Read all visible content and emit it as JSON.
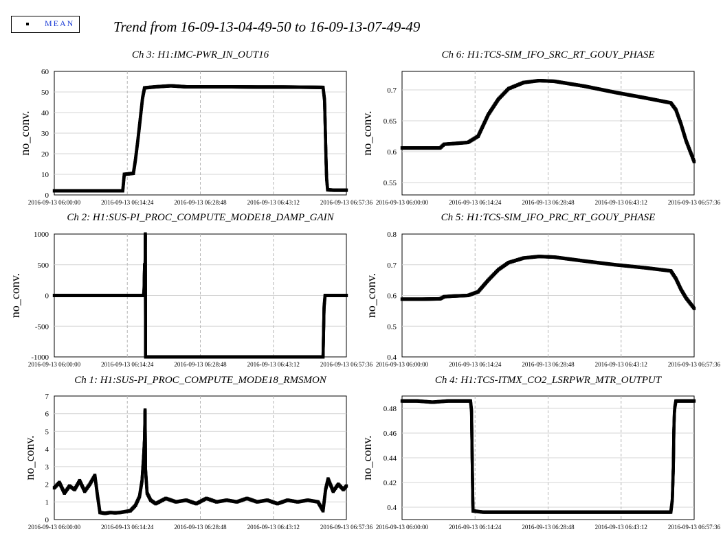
{
  "legend": {
    "label": "MEAN"
  },
  "page_title": "Trend from 16-09-13-04-49-50 to 16-09-13-07-49-49",
  "chart_data": [
    {
      "type": "scatter",
      "title": "Ch 3: H1:IMC-PWR_IN_OUT16",
      "ylabel": "no_conv.",
      "xlabel": "",
      "x_ticks": [
        "2016-09-13 06:00:00",
        "2016-09-13 06:14:24",
        "2016-09-13 06:28:48",
        "2016-09-13 06:43:12",
        "2016-09-13 06:57:36"
      ],
      "x_range_minutes": [
        0,
        57.6
      ],
      "y_ticks": [
        "0",
        "10",
        "20",
        "30",
        "40",
        "50",
        "60"
      ],
      "ylim": [
        0,
        60
      ],
      "grid": true,
      "series": [
        {
          "points": [
            [
              0,
              2
            ],
            [
              2,
              2
            ],
            [
              6,
              2
            ],
            [
              10,
              2
            ],
            [
              13.5,
              2
            ],
            [
              13.8,
              10
            ],
            [
              15.6,
              10.5
            ],
            [
              16,
              17
            ],
            [
              16.5,
              27
            ],
            [
              17,
              38
            ],
            [
              17.4,
              47
            ],
            [
              17.8,
              52
            ],
            [
              20,
              52.5
            ],
            [
              23,
              53
            ],
            [
              26,
              52.5
            ],
            [
              30,
              52.5
            ],
            [
              35,
              52.5
            ],
            [
              40,
              52.4
            ],
            [
              45,
              52.4
            ],
            [
              50,
              52.3
            ],
            [
              53,
              52.2
            ],
            [
              53.3,
              46
            ],
            [
              53.4,
              36
            ],
            [
              53.5,
              26
            ],
            [
              53.6,
              16
            ],
            [
              53.7,
              8
            ],
            [
              53.9,
              2.5
            ],
            [
              55,
              2.3
            ],
            [
              57.6,
              2.3
            ]
          ]
        }
      ]
    },
    {
      "type": "scatter",
      "title": "Ch 6: H1:TCS-SIM_IFO_SRC_RT_GOUY_PHASE",
      "ylabel": "no_conv.",
      "xlabel": "",
      "x_ticks": [
        "2016-09-13 06:00:00",
        "2016-09-13 06:14:24",
        "2016-09-13 06:28:48",
        "2016-09-13 06:43:12",
        "2016-09-13 06:57:36"
      ],
      "x_range_minutes": [
        0,
        57.6
      ],
      "y_ticks": [
        "0.55",
        "0.6",
        "0.65",
        "0.7"
      ],
      "ylim": [
        0.53,
        0.73
      ],
      "grid": true,
      "series": [
        {
          "points": [
            [
              0,
              0.606
            ],
            [
              4,
              0.606
            ],
            [
              7.5,
              0.606
            ],
            [
              8.3,
              0.612
            ],
            [
              10,
              0.613
            ],
            [
              13,
              0.615
            ],
            [
              15,
              0.625
            ],
            [
              17,
              0.66
            ],
            [
              19,
              0.685
            ],
            [
              21,
              0.702
            ],
            [
              24,
              0.712
            ],
            [
              27,
              0.715
            ],
            [
              30,
              0.714
            ],
            [
              36,
              0.706
            ],
            [
              42,
              0.696
            ],
            [
              48,
              0.687
            ],
            [
              53,
              0.679
            ],
            [
              54,
              0.668
            ],
            [
              55,
              0.645
            ],
            [
              56,
              0.618
            ],
            [
              57.6,
              0.584
            ]
          ]
        }
      ]
    },
    {
      "type": "scatter",
      "title": "Ch 2: H1:SUS-PI_PROC_COMPUTE_MODE18_DAMP_GAIN",
      "ylabel": "no_conv.",
      "xlabel": "",
      "x_ticks": [
        "2016-09-13 06:00:00",
        "2016-09-13 06:14:24",
        "2016-09-13 06:28:48",
        "2016-09-13 06:43:12",
        "2016-09-13 06:57:36"
      ],
      "x_range_minutes": [
        0,
        57.6
      ],
      "y_ticks": [
        "-1000",
        "-500",
        "0",
        "500",
        "1000"
      ],
      "ylim": [
        -1000,
        1000
      ],
      "grid": true,
      "series": [
        {
          "points": [
            [
              0,
              0
            ],
            [
              4,
              0
            ],
            [
              8,
              0
            ],
            [
              12,
              0
            ],
            [
              17.6,
              0
            ],
            [
              17.7,
              100
            ],
            [
              17.8,
              500
            ],
            [
              17.9,
              400
            ],
            [
              17.95,
              1000
            ],
            [
              18,
              -1000
            ],
            [
              22,
              -1000
            ],
            [
              28,
              -1000
            ],
            [
              34,
              -1000
            ],
            [
              40,
              -1000
            ],
            [
              46,
              -1000
            ],
            [
              53,
              -1000
            ],
            [
              53.2,
              -190
            ],
            [
              53.4,
              0
            ],
            [
              55,
              0
            ],
            [
              57.6,
              0
            ]
          ]
        }
      ]
    },
    {
      "type": "scatter",
      "title": "Ch 5: H1:TCS-SIM_IFO_PRC_RT_GOUY_PHASE",
      "ylabel": "no_conv.",
      "xlabel": "",
      "x_ticks": [
        "2016-09-13 06:00:00",
        "2016-09-13 06:14:24",
        "2016-09-13 06:28:48",
        "2016-09-13 06:43:12",
        "2016-09-13 06:57:36"
      ],
      "x_range_minutes": [
        0,
        57.6
      ],
      "y_ticks": [
        "0.4",
        "0.5",
        "0.6",
        "0.7",
        "0.8"
      ],
      "ylim": [
        0.4,
        0.8
      ],
      "grid": true,
      "series": [
        {
          "points": [
            [
              0,
              0.588
            ],
            [
              4,
              0.588
            ],
            [
              7.5,
              0.589
            ],
            [
              8.3,
              0.596
            ],
            [
              10,
              0.598
            ],
            [
              13,
              0.6
            ],
            [
              15,
              0.612
            ],
            [
              17,
              0.65
            ],
            [
              19,
              0.684
            ],
            [
              21,
              0.707
            ],
            [
              24,
              0.722
            ],
            [
              27,
              0.727
            ],
            [
              30,
              0.725
            ],
            [
              36,
              0.712
            ],
            [
              42,
              0.7
            ],
            [
              48,
              0.69
            ],
            [
              53,
              0.68
            ],
            [
              54,
              0.655
            ],
            [
              55,
              0.62
            ],
            [
              56,
              0.592
            ],
            [
              57.6,
              0.558
            ]
          ]
        }
      ]
    },
    {
      "type": "scatter",
      "title": "Ch 1: H1:SUS-PI_PROC_COMPUTE_MODE18_RMSMON",
      "ylabel": "no_conv.",
      "xlabel": "",
      "x_ticks": [
        "2016-09-13 06:00:00",
        "2016-09-13 06:14:24",
        "2016-09-13 06:28:48",
        "2016-09-13 06:43:12",
        "2016-09-13 06:57:36"
      ],
      "x_range_minutes": [
        0,
        57.6
      ],
      "y_ticks": [
        "0",
        "1",
        "2",
        "3",
        "4",
        "5",
        "6",
        "7"
      ],
      "ylim": [
        0,
        7
      ],
      "grid": true,
      "series": [
        {
          "points": [
            [
              0,
              1.8
            ],
            [
              1,
              2.1
            ],
            [
              2,
              1.5
            ],
            [
              3,
              1.9
            ],
            [
              4,
              1.7
            ],
            [
              5,
              2.2
            ],
            [
              6,
              1.6
            ],
            [
              7,
              2.0
            ],
            [
              8,
              2.5
            ],
            [
              8.5,
              1.4
            ],
            [
              9,
              0.4
            ],
            [
              10,
              0.35
            ],
            [
              11,
              0.4
            ],
            [
              12,
              0.38
            ],
            [
              13,
              0.4
            ],
            [
              14,
              0.45
            ],
            [
              15,
              0.5
            ],
            [
              16,
              0.8
            ],
            [
              16.8,
              1.3
            ],
            [
              17.3,
              2.2
            ],
            [
              17.6,
              3.5
            ],
            [
              17.8,
              4.6
            ],
            [
              17.9,
              6.2
            ],
            [
              18,
              2.8
            ],
            [
              18.3,
              1.5
            ],
            [
              19,
              1.1
            ],
            [
              20,
              0.9
            ],
            [
              22,
              1.2
            ],
            [
              24,
              1.0
            ],
            [
              26,
              1.1
            ],
            [
              28,
              0.9
            ],
            [
              30,
              1.2
            ],
            [
              32,
              1.0
            ],
            [
              34,
              1.1
            ],
            [
              36,
              1.0
            ],
            [
              38,
              1.2
            ],
            [
              40,
              1.0
            ],
            [
              42,
              1.1
            ],
            [
              44,
              0.9
            ],
            [
              46,
              1.1
            ],
            [
              48,
              1.0
            ],
            [
              50,
              1.1
            ],
            [
              52,
              1.0
            ],
            [
              53,
              0.5
            ],
            [
              53.5,
              1.7
            ],
            [
              54,
              2.3
            ],
            [
              55,
              1.6
            ],
            [
              56,
              2.0
            ],
            [
              57,
              1.7
            ],
            [
              57.6,
              1.9
            ]
          ]
        }
      ]
    },
    {
      "type": "scatter",
      "title": "Ch 4: H1:TCS-ITMX_CO2_LSRPWR_MTR_OUTPUT",
      "ylabel": "no_conv.",
      "xlabel": "",
      "x_ticks": [
        "2016-09-13 06:00:00",
        "2016-09-13 06:14:24",
        "2016-09-13 06:28:48",
        "2016-09-13 06:43:12",
        "2016-09-13 06:57:36"
      ],
      "x_range_minutes": [
        0,
        57.6
      ],
      "y_ticks": [
        "0.4",
        "0.42",
        "0.44",
        "0.46",
        "0.48"
      ],
      "ylim": [
        0.39,
        0.49
      ],
      "grid": true,
      "series": [
        {
          "points": [
            [
              0,
              0.486
            ],
            [
              3,
              0.486
            ],
            [
              6,
              0.485
            ],
            [
              9,
              0.486
            ],
            [
              12,
              0.486
            ],
            [
              13.5,
              0.486
            ],
            [
              13.7,
              0.478
            ],
            [
              13.8,
              0.449
            ],
            [
              13.9,
              0.42
            ],
            [
              13.95,
              0.405
            ],
            [
              14,
              0.397
            ],
            [
              16,
              0.396
            ],
            [
              20,
              0.396
            ],
            [
              25,
              0.396
            ],
            [
              30,
              0.396
            ],
            [
              35,
              0.396
            ],
            [
              40,
              0.396
            ],
            [
              45,
              0.396
            ],
            [
              50,
              0.396
            ],
            [
              53,
              0.396
            ],
            [
              53.3,
              0.406
            ],
            [
              53.5,
              0.433
            ],
            [
              53.6,
              0.462
            ],
            [
              53.7,
              0.476
            ],
            [
              53.8,
              0.481
            ],
            [
              54,
              0.486
            ],
            [
              56,
              0.486
            ],
            [
              57.6,
              0.486
            ]
          ]
        }
      ]
    }
  ]
}
